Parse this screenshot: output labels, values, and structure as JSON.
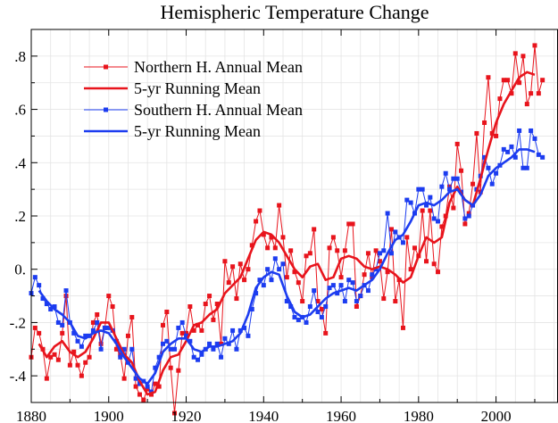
{
  "chart_data": {
    "type": "line",
    "title": "Hemispheric Temperature Change",
    "xlabel": "",
    "ylabel": "",
    "xlim": [
      1880,
      2016
    ],
    "ylim": [
      -0.5,
      0.9
    ],
    "x_ticks": [
      1880,
      1900,
      1920,
      1940,
      1960,
      1980,
      2000
    ],
    "x_tick_labels": [
      "1880",
      "1900",
      "1920",
      "1940",
      "1960",
      "1980",
      "2000"
    ],
    "y_ticks": [
      -0.4,
      -0.2,
      0.0,
      0.2,
      0.4,
      0.6,
      0.8
    ],
    "y_tick_labels": [
      "-.4",
      "-.2",
      "0.",
      ".2",
      ".4",
      ".6",
      ".8"
    ],
    "grid": true,
    "legend_position": "top-left",
    "series": [
      {
        "name": "Northern H. Annual Mean",
        "color": "#e8141c",
        "marker": "square",
        "x": [
          1880,
          1881,
          1882,
          1883,
          1884,
          1885,
          1886,
          1887,
          1888,
          1889,
          1890,
          1891,
          1892,
          1893,
          1894,
          1895,
          1896,
          1897,
          1898,
          1899,
          1900,
          1901,
          1902,
          1903,
          1904,
          1905,
          1906,
          1907,
          1908,
          1909,
          1910,
          1911,
          1912,
          1913,
          1914,
          1915,
          1916,
          1917,
          1918,
          1919,
          1920,
          1921,
          1922,
          1923,
          1924,
          1925,
          1926,
          1927,
          1928,
          1929,
          1930,
          1931,
          1932,
          1933,
          1934,
          1935,
          1936,
          1937,
          1938,
          1939,
          1940,
          1941,
          1942,
          1943,
          1944,
          1945,
          1946,
          1947,
          1948,
          1949,
          1950,
          1951,
          1952,
          1953,
          1954,
          1955,
          1956,
          1957,
          1958,
          1959,
          1960,
          1961,
          1962,
          1963,
          1964,
          1965,
          1966,
          1967,
          1968,
          1969,
          1970,
          1971,
          1972,
          1973,
          1974,
          1975,
          1976,
          1977,
          1978,
          1979,
          1980,
          1981,
          1982,
          1983,
          1984,
          1985,
          1986,
          1987,
          1988,
          1989,
          1990,
          1991,
          1992,
          1993,
          1994,
          1995,
          1996,
          1997,
          1998,
          1999,
          2000,
          2001,
          2002,
          2003,
          2004,
          2005,
          2006,
          2007,
          2008,
          2009,
          2010,
          2011,
          2012
        ],
        "y": [
          -0.33,
          -0.22,
          -0.24,
          -0.3,
          -0.41,
          -0.33,
          -0.32,
          -0.34,
          -0.24,
          -0.1,
          -0.36,
          -0.31,
          -0.36,
          -0.4,
          -0.35,
          -0.33,
          -0.2,
          -0.17,
          -0.28,
          -0.22,
          -0.1,
          -0.14,
          -0.3,
          -0.32,
          -0.41,
          -0.25,
          -0.18,
          -0.44,
          -0.47,
          -0.49,
          -0.45,
          -0.47,
          -0.43,
          -0.44,
          -0.21,
          -0.16,
          -0.37,
          -0.54,
          -0.38,
          -0.24,
          -0.24,
          -0.14,
          -0.23,
          -0.21,
          -0.23,
          -0.13,
          -0.1,
          -0.19,
          -0.13,
          -0.28,
          0.03,
          -0.05,
          0.01,
          -0.11,
          0.02,
          -0.04,
          0.0,
          0.09,
          0.18,
          0.22,
          0.13,
          0.08,
          0.12,
          0.08,
          0.24,
          0.12,
          -0.03,
          0.07,
          -0.01,
          -0.05,
          -0.12,
          0.05,
          0.06,
          0.15,
          -0.12,
          -0.15,
          -0.24,
          0.08,
          0.12,
          0.07,
          -0.03,
          0.07,
          0.17,
          0.17,
          -0.14,
          -0.1,
          -0.02,
          0.06,
          -0.03,
          0.07,
          0.03,
          -0.11,
          -0.01,
          0.15,
          -0.12,
          -0.04,
          -0.22,
          0.12,
          0.0,
          0.08,
          0.05,
          0.22,
          0.03,
          0.22,
          0.02,
          -0.01,
          0.16,
          0.2,
          0.31,
          0.23,
          0.47,
          0.37,
          0.17,
          0.21,
          0.32,
          0.51,
          0.29,
          0.55,
          0.72,
          0.51,
          0.5,
          0.64,
          0.71,
          0.71,
          0.66,
          0.81,
          0.7,
          0.8,
          0.62,
          0.66,
          0.84,
          0.66,
          0.71
        ]
      },
      {
        "name": "5-yr Running Mean",
        "color": "#e8141c",
        "x": [
          1882,
          1884,
          1886,
          1888,
          1890,
          1892,
          1894,
          1896,
          1898,
          1900,
          1902,
          1904,
          1906,
          1908,
          1910,
          1912,
          1914,
          1916,
          1918,
          1920,
          1922,
          1924,
          1926,
          1928,
          1930,
          1932,
          1934,
          1936,
          1938,
          1940,
          1942,
          1944,
          1946,
          1948,
          1950,
          1952,
          1954,
          1956,
          1958,
          1960,
          1962,
          1964,
          1966,
          1968,
          1970,
          1972,
          1974,
          1976,
          1978,
          1980,
          1982,
          1984,
          1986,
          1988,
          1990,
          1992,
          1994,
          1996,
          1998,
          2000,
          2002,
          2004,
          2006,
          2008,
          2010
        ],
        "y": [
          -0.28,
          -0.33,
          -0.29,
          -0.27,
          -0.31,
          -0.33,
          -0.31,
          -0.26,
          -0.2,
          -0.2,
          -0.26,
          -0.32,
          -0.35,
          -0.42,
          -0.47,
          -0.46,
          -0.38,
          -0.33,
          -0.32,
          -0.27,
          -0.21,
          -0.2,
          -0.17,
          -0.15,
          -0.09,
          -0.06,
          -0.03,
          0.04,
          0.11,
          0.14,
          0.13,
          0.1,
          0.05,
          0.0,
          -0.03,
          0.01,
          0.02,
          -0.04,
          -0.03,
          0.04,
          0.05,
          0.04,
          0.01,
          0.0,
          0.01,
          0.0,
          -0.02,
          -0.05,
          -0.03,
          0.05,
          0.12,
          0.1,
          0.12,
          0.25,
          0.31,
          0.26,
          0.24,
          0.34,
          0.45,
          0.55,
          0.62,
          0.67,
          0.72,
          0.74,
          0.73
        ]
      },
      {
        "name": "Southern H. Annual Mean",
        "color": "#1c3cf0",
        "marker": "square",
        "x": [
          1880,
          1881,
          1882,
          1883,
          1884,
          1885,
          1886,
          1887,
          1888,
          1889,
          1890,
          1891,
          1892,
          1893,
          1894,
          1895,
          1896,
          1897,
          1898,
          1899,
          1900,
          1901,
          1902,
          1903,
          1904,
          1905,
          1906,
          1907,
          1908,
          1909,
          1910,
          1911,
          1912,
          1913,
          1914,
          1915,
          1916,
          1917,
          1918,
          1919,
          1920,
          1921,
          1922,
          1923,
          1924,
          1925,
          1926,
          1927,
          1928,
          1929,
          1930,
          1931,
          1932,
          1933,
          1934,
          1935,
          1936,
          1937,
          1938,
          1939,
          1940,
          1941,
          1942,
          1943,
          1944,
          1945,
          1946,
          1947,
          1948,
          1949,
          1950,
          1951,
          1952,
          1953,
          1954,
          1955,
          1956,
          1957,
          1958,
          1959,
          1960,
          1961,
          1962,
          1963,
          1964,
          1965,
          1966,
          1967,
          1968,
          1969,
          1970,
          1971,
          1972,
          1973,
          1974,
          1975,
          1976,
          1977,
          1978,
          1979,
          1980,
          1981,
          1982,
          1983,
          1984,
          1985,
          1986,
          1987,
          1988,
          1989,
          1990,
          1991,
          1992,
          1993,
          1994,
          1995,
          1996,
          1997,
          1998,
          1999,
          2000,
          2001,
          2002,
          2003,
          2004,
          2005,
          2006,
          2007,
          2008,
          2009,
          2010,
          2011,
          2012
        ],
        "y": [
          -0.09,
          -0.03,
          -0.06,
          -0.11,
          -0.13,
          -0.15,
          -0.14,
          -0.2,
          -0.21,
          -0.08,
          -0.2,
          -0.24,
          -0.27,
          -0.29,
          -0.25,
          -0.25,
          -0.23,
          -0.2,
          -0.3,
          -0.22,
          -0.22,
          -0.23,
          -0.27,
          -0.33,
          -0.3,
          -0.35,
          -0.3,
          -0.41,
          -0.43,
          -0.42,
          -0.44,
          -0.46,
          -0.37,
          -0.33,
          -0.28,
          -0.27,
          -0.3,
          -0.3,
          -0.22,
          -0.2,
          -0.25,
          -0.27,
          -0.33,
          -0.34,
          -0.32,
          -0.3,
          -0.28,
          -0.3,
          -0.28,
          -0.33,
          -0.26,
          -0.28,
          -0.23,
          -0.3,
          -0.23,
          -0.22,
          -0.25,
          -0.15,
          -0.09,
          -0.04,
          -0.06,
          0.0,
          -0.04,
          0.04,
          0.0,
          0.02,
          -0.12,
          -0.14,
          -0.18,
          -0.19,
          -0.18,
          -0.2,
          -0.14,
          -0.08,
          -0.16,
          -0.18,
          -0.14,
          -0.07,
          -0.06,
          -0.09,
          -0.06,
          -0.12,
          -0.04,
          -0.05,
          -0.12,
          -0.1,
          -0.06,
          -0.08,
          -0.02,
          0.0,
          0.06,
          0.07,
          0.21,
          0.06,
          0.14,
          0.12,
          0.1,
          0.26,
          0.25,
          0.21,
          0.3,
          0.3,
          0.24,
          0.27,
          0.19,
          0.18,
          0.31,
          0.36,
          0.3,
          0.34,
          0.34,
          0.29,
          0.19,
          0.2,
          0.24,
          0.3,
          0.35,
          0.42,
          0.38,
          0.32,
          0.36,
          0.39,
          0.45,
          0.44,
          0.46,
          0.42,
          0.52,
          0.38,
          0.38,
          0.52,
          0.49,
          0.43,
          0.42
        ]
      },
      {
        "name": "5-yr Running Mean",
        "color": "#1c3cf0",
        "x": [
          1882,
          1884,
          1886,
          1888,
          1890,
          1892,
          1894,
          1896,
          1898,
          1900,
          1902,
          1904,
          1906,
          1908,
          1910,
          1912,
          1914,
          1916,
          1918,
          1920,
          1922,
          1924,
          1926,
          1928,
          1930,
          1932,
          1934,
          1936,
          1938,
          1940,
          1942,
          1944,
          1946,
          1948,
          1950,
          1952,
          1954,
          1956,
          1958,
          1960,
          1962,
          1964,
          1966,
          1968,
          1970,
          1972,
          1974,
          1976,
          1978,
          1980,
          1982,
          1984,
          1986,
          1988,
          1990,
          1992,
          1994,
          1996,
          1998,
          2000,
          2002,
          2004,
          2006,
          2008,
          2010
        ],
        "y": [
          -0.08,
          -0.12,
          -0.15,
          -0.17,
          -0.2,
          -0.25,
          -0.26,
          -0.24,
          -0.23,
          -0.24,
          -0.28,
          -0.33,
          -0.37,
          -0.41,
          -0.43,
          -0.39,
          -0.31,
          -0.28,
          -0.26,
          -0.26,
          -0.3,
          -0.31,
          -0.29,
          -0.29,
          -0.28,
          -0.27,
          -0.24,
          -0.17,
          -0.07,
          -0.03,
          -0.01,
          -0.02,
          -0.1,
          -0.16,
          -0.18,
          -0.17,
          -0.14,
          -0.11,
          -0.09,
          -0.08,
          -0.07,
          -0.08,
          -0.06,
          -0.04,
          0.0,
          0.06,
          0.11,
          0.13,
          0.18,
          0.24,
          0.25,
          0.24,
          0.26,
          0.29,
          0.3,
          0.26,
          0.24,
          0.28,
          0.35,
          0.38,
          0.4,
          0.42,
          0.45,
          0.45,
          0.44
        ]
      }
    ]
  }
}
